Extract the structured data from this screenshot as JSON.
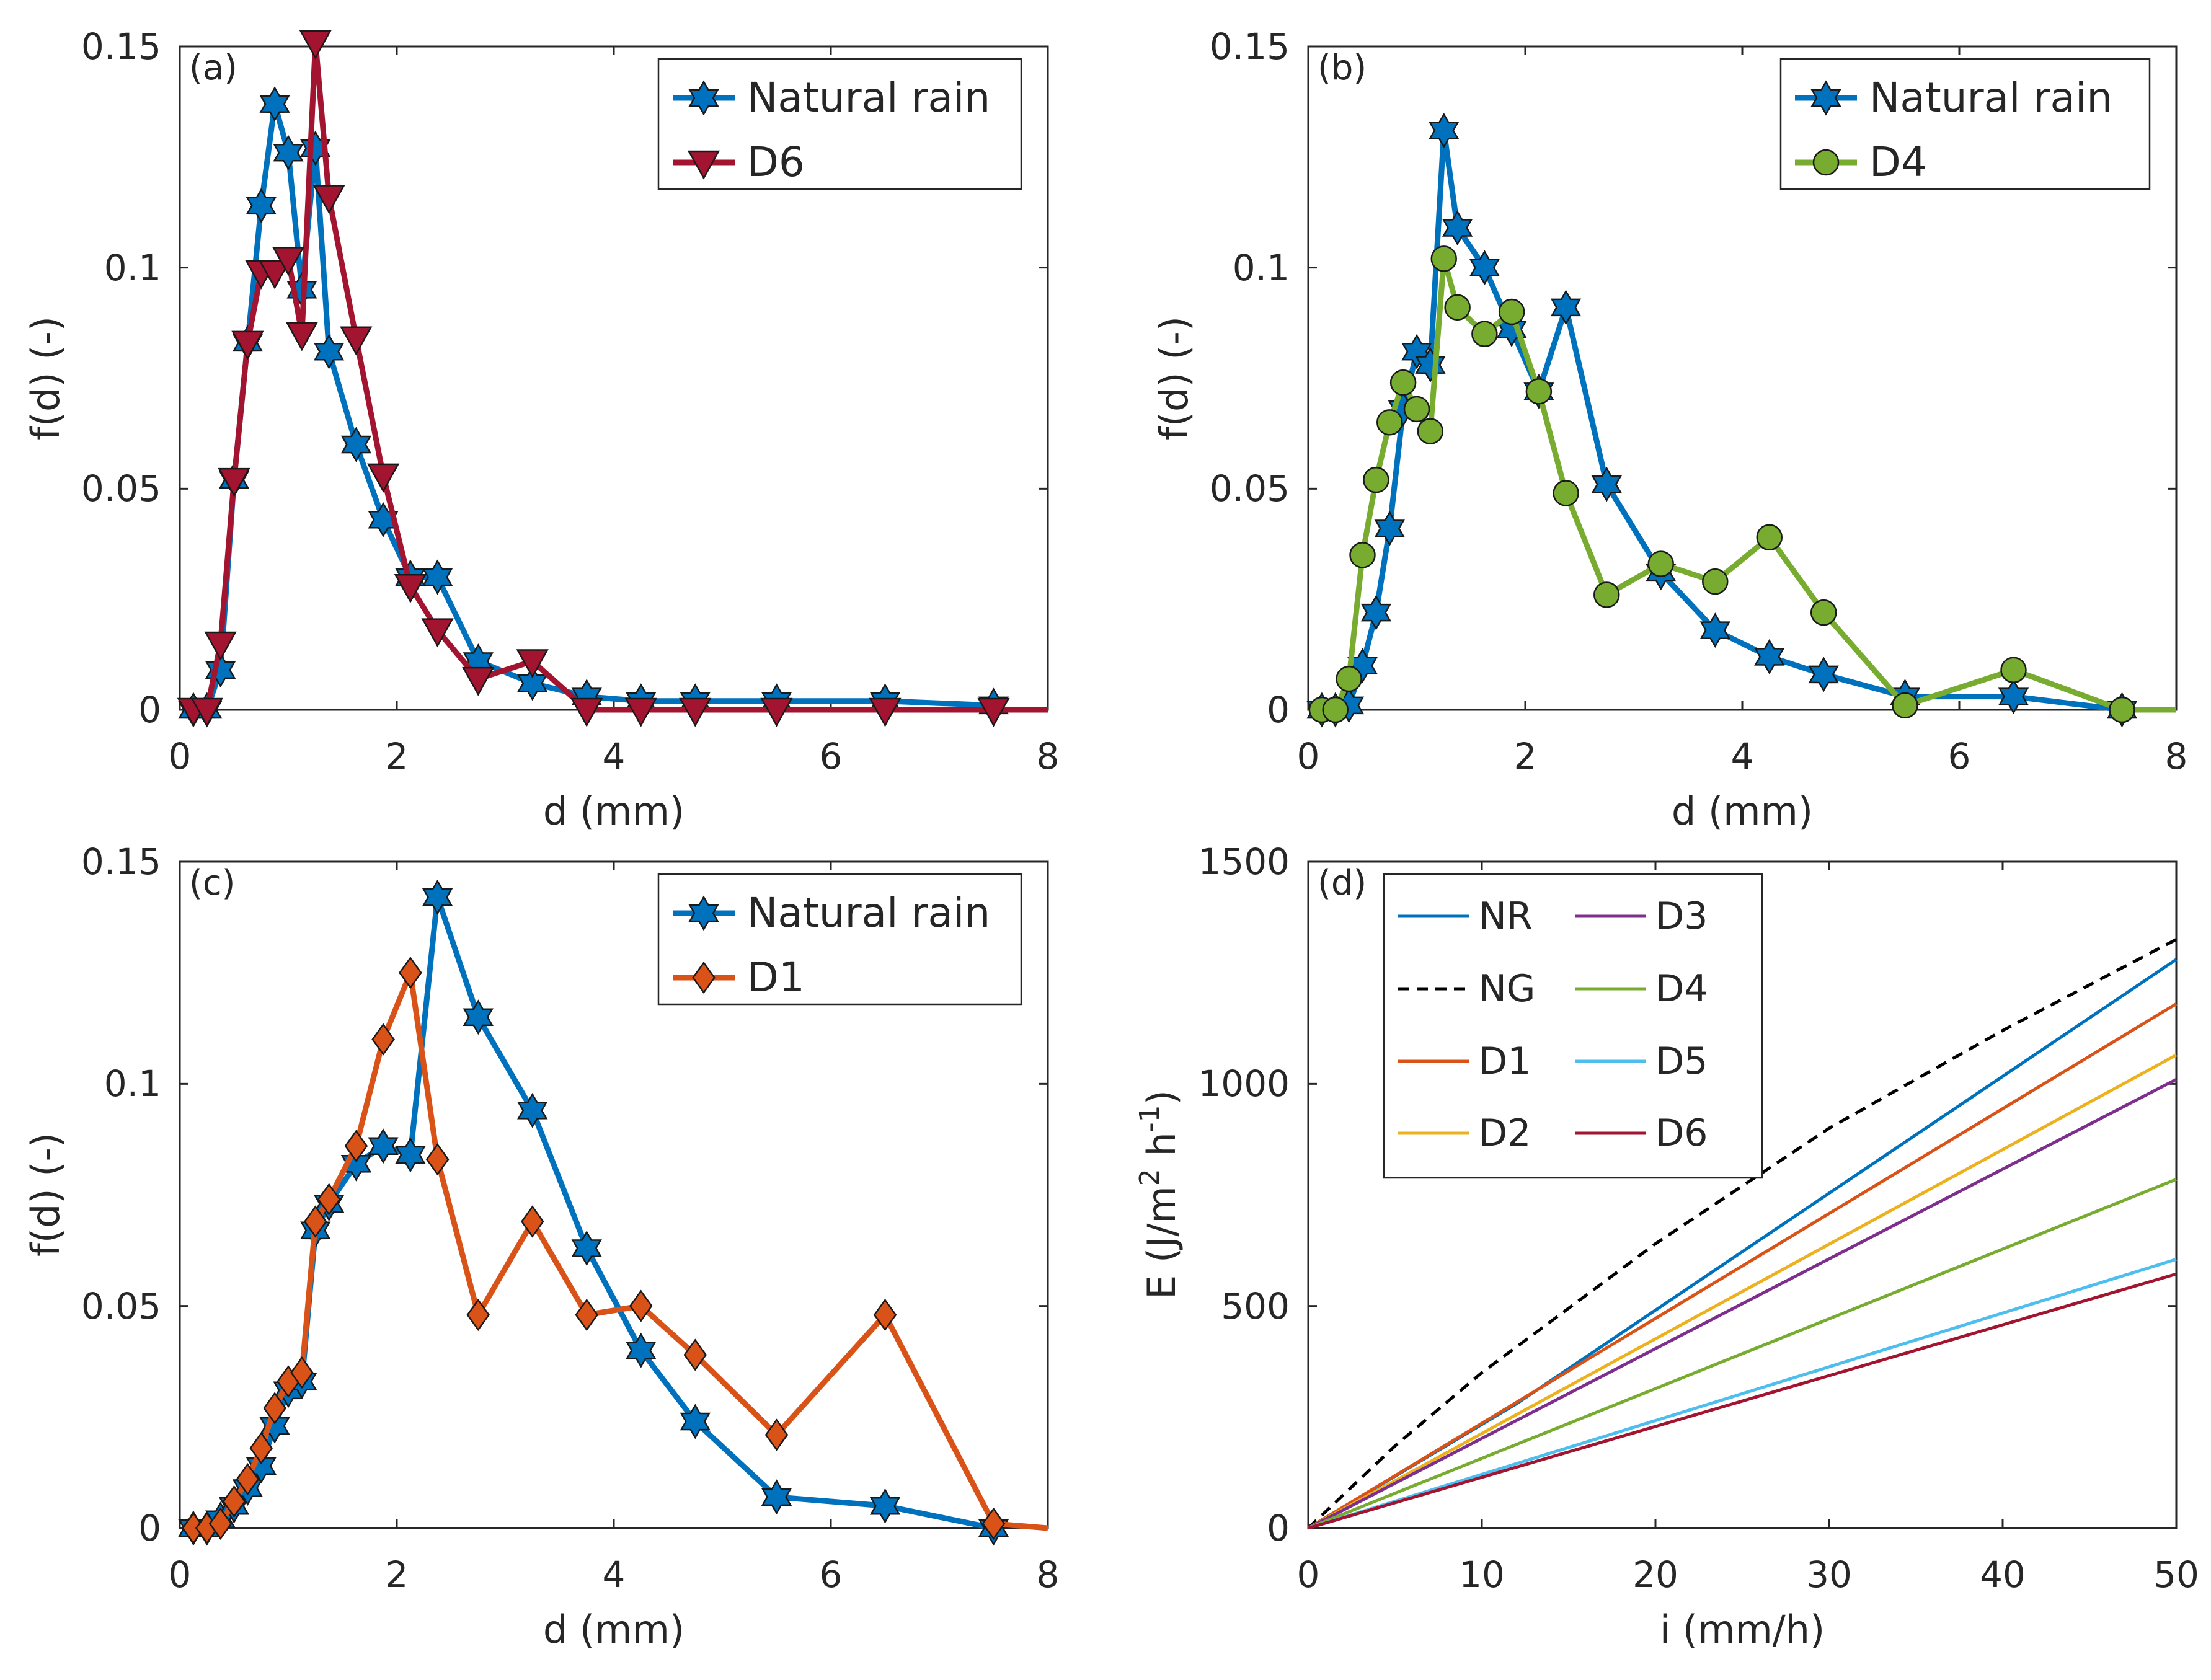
{
  "colors": {
    "blue": "#0072BD",
    "red": "#A2142F",
    "green": "#77AC30",
    "orange": "#D95319",
    "yellow": "#EDB120",
    "purple": "#7E2F8E",
    "cyan": "#4DBEEE",
    "black": "#000000"
  },
  "chart_data": [
    {
      "type": "line",
      "panel": "(a)",
      "xlabel": "d (mm)",
      "ylabel": "f(d) (-)",
      "xlim": [
        0,
        8
      ],
      "ylim": [
        0,
        0.15
      ],
      "xticks": [
        0,
        2,
        4,
        6,
        8
      ],
      "xtick_labels": [
        "0",
        "2",
        "4",
        "6",
        "8"
      ],
      "yticks": [
        0,
        0.05,
        0.1,
        0.15
      ],
      "ytick_labels": [
        "0",
        "0.05",
        "0.1",
        "0.15"
      ],
      "legend_position": "top-right",
      "series": [
        {
          "name": "Natural rain",
          "color": "blue",
          "marker": "hexagram",
          "x": [
            0.125,
            0.25,
            0.375,
            0.5,
            0.625,
            0.75,
            0.875,
            1.0,
            1.125,
            1.25,
            1.375,
            1.625,
            1.875,
            2.125,
            2.375,
            2.75,
            3.25,
            3.75,
            4.25,
            4.75,
            5.5,
            6.5,
            7.5
          ],
          "y": [
            0,
            0,
            0.009,
            0.052,
            0.083,
            0.114,
            0.137,
            0.126,
            0.095,
            0.127,
            0.081,
            0.06,
            0.043,
            0.03,
            0.03,
            0.011,
            0.006,
            0.003,
            0.002,
            0.002,
            0.002,
            0.002,
            0.001
          ]
        },
        {
          "name": "D6",
          "color": "red",
          "marker": "triangle-down",
          "x": [
            0.125,
            0.25,
            0.375,
            0.5,
            0.625,
            0.75,
            0.875,
            1.0,
            1.125,
            1.25,
            1.375,
            1.625,
            1.875,
            2.125,
            2.375,
            2.75,
            3.25,
            3.75,
            4.25,
            4.75,
            5.5,
            6.5,
            7.5,
            8.0
          ],
          "y": [
            0,
            0,
            0.015,
            0.052,
            0.083,
            0.099,
            0.099,
            0.102,
            0.085,
            0.151,
            0.116,
            0.084,
            0.053,
            0.028,
            0.018,
            0.007,
            0.011,
            0,
            0,
            0,
            0,
            0,
            0,
            0
          ]
        }
      ]
    },
    {
      "type": "line",
      "panel": "(b)",
      "xlabel": "d (mm)",
      "ylabel": "f(d) (-)",
      "xlim": [
        0,
        8
      ],
      "ylim": [
        0,
        0.15
      ],
      "xticks": [
        0,
        2,
        4,
        6,
        8
      ],
      "xtick_labels": [
        "0",
        "2",
        "4",
        "6",
        "8"
      ],
      "yticks": [
        0,
        0.05,
        0.1,
        0.15
      ],
      "ytick_labels": [
        "0",
        "0.05",
        "0.1",
        "0.15"
      ],
      "legend_position": "top-right",
      "series": [
        {
          "name": "Natural rain",
          "color": "blue",
          "marker": "hexagram",
          "x": [
            0.125,
            0.25,
            0.375,
            0.5,
            0.625,
            0.75,
            0.875,
            1.0,
            1.125,
            1.25,
            1.375,
            1.625,
            1.875,
            2.125,
            2.375,
            2.75,
            3.25,
            3.75,
            4.25,
            4.75,
            5.5,
            6.5,
            7.5
          ],
          "y": [
            0,
            0,
            0.001,
            0.01,
            0.022,
            0.041,
            0.068,
            0.081,
            0.078,
            0.131,
            0.109,
            0.1,
            0.086,
            0.072,
            0.091,
            0.051,
            0.031,
            0.018,
            0.012,
            0.008,
            0.003,
            0.003,
            0
          ]
        },
        {
          "name": "D4",
          "color": "green",
          "marker": "circle",
          "x": [
            0.125,
            0.25,
            0.375,
            0.5,
            0.625,
            0.75,
            0.875,
            1.0,
            1.125,
            1.25,
            1.375,
            1.625,
            1.875,
            2.125,
            2.375,
            2.75,
            3.25,
            3.75,
            4.25,
            4.75,
            5.5,
            6.5,
            7.5,
            8.0
          ],
          "y": [
            0,
            0,
            0.007,
            0.035,
            0.052,
            0.065,
            0.074,
            0.068,
            0.063,
            0.102,
            0.091,
            0.085,
            0.09,
            0.072,
            0.049,
            0.026,
            0.033,
            0.029,
            0.039,
            0.022,
            0.001,
            0.009,
            0,
            0
          ]
        }
      ]
    },
    {
      "type": "line",
      "panel": "(c)",
      "xlabel": "d (mm)",
      "ylabel": "f(d) (-)",
      "xlim": [
        0,
        8
      ],
      "ylim": [
        0,
        0.15
      ],
      "xticks": [
        0,
        2,
        4,
        6,
        8
      ],
      "xtick_labels": [
        "0",
        "2",
        "4",
        "6",
        "8"
      ],
      "yticks": [
        0,
        0.05,
        0.1,
        0.15
      ],
      "ytick_labels": [
        "0",
        "0.05",
        "0.1",
        "0.15"
      ],
      "legend_position": "top-right",
      "series": [
        {
          "name": "Natural rain",
          "color": "blue",
          "marker": "hexagram",
          "x": [
            0.125,
            0.25,
            0.375,
            0.5,
            0.625,
            0.75,
            0.875,
            1.0,
            1.125,
            1.25,
            1.375,
            1.625,
            1.875,
            2.125,
            2.375,
            2.75,
            3.25,
            3.75,
            4.25,
            4.75,
            5.5,
            6.5,
            7.5
          ],
          "y": [
            0,
            0,
            0.002,
            0.005,
            0.009,
            0.014,
            0.023,
            0.031,
            0.033,
            0.067,
            0.073,
            0.082,
            0.086,
            0.084,
            0.142,
            0.115,
            0.094,
            0.063,
            0.04,
            0.024,
            0.007,
            0.005,
            0
          ]
        },
        {
          "name": "D1",
          "color": "orange",
          "marker": "diamond",
          "x": [
            0.125,
            0.25,
            0.375,
            0.5,
            0.625,
            0.75,
            0.875,
            1.0,
            1.125,
            1.25,
            1.375,
            1.625,
            1.875,
            2.125,
            2.375,
            2.75,
            3.25,
            3.75,
            4.25,
            4.75,
            5.5,
            6.5,
            7.5,
            8.0
          ],
          "y": [
            0,
            0,
            0.001,
            0.006,
            0.011,
            0.018,
            0.027,
            0.033,
            0.035,
            0.069,
            0.074,
            0.086,
            0.11,
            0.125,
            0.083,
            0.048,
            0.069,
            0.048,
            0.05,
            0.039,
            0.021,
            0.048,
            0.001,
            0
          ]
        }
      ]
    },
    {
      "type": "line",
      "panel": "(d)",
      "xlabel": "i (mm/h)",
      "ylabel_main": "E (J/m",
      "ylabel_sup1": "2",
      "ylabel_mid": " h",
      "ylabel_sup2": "-1",
      "ylabel_end": ")",
      "xlim": [
        0,
        50
      ],
      "ylim": [
        0,
        1500
      ],
      "xticks": [
        0,
        10,
        20,
        30,
        40,
        50
      ],
      "xtick_labels": [
        "0",
        "10",
        "20",
        "30",
        "40",
        "50"
      ],
      "yticks": [
        0,
        500,
        1000,
        1500
      ],
      "ytick_labels": [
        "0",
        "500",
        "1000",
        "1500"
      ],
      "legend_position": "top-left",
      "series": [
        {
          "name": "NR",
          "color": "blue",
          "dash": false,
          "x": [
            0,
            12,
            50
          ],
          "y": [
            0,
            280,
            1280
          ]
        },
        {
          "name": "NG",
          "color": "black",
          "dash": true,
          "x": [
            0,
            5,
            10,
            20,
            30,
            40,
            50
          ],
          "y": [
            0,
            185,
            350,
            640,
            900,
            1120,
            1325
          ]
        },
        {
          "name": "D1",
          "color": "orange",
          "dash": false,
          "x": [
            0,
            50
          ],
          "y": [
            0,
            1180
          ]
        },
        {
          "name": "D2",
          "color": "yellow",
          "dash": false,
          "x": [
            0,
            50
          ],
          "y": [
            0,
            1065
          ]
        },
        {
          "name": "D3",
          "color": "purple",
          "dash": false,
          "x": [
            0,
            50
          ],
          "y": [
            0,
            1010
          ]
        },
        {
          "name": "D4",
          "color": "green",
          "dash": false,
          "x": [
            0,
            50
          ],
          "y": [
            0,
            785
          ]
        },
        {
          "name": "D5",
          "color": "cyan",
          "dash": false,
          "x": [
            0,
            50
          ],
          "y": [
            0,
            605
          ]
        },
        {
          "name": "D6",
          "color": "red",
          "dash": false,
          "x": [
            0,
            50
          ],
          "y": [
            0,
            572
          ]
        }
      ]
    }
  ]
}
